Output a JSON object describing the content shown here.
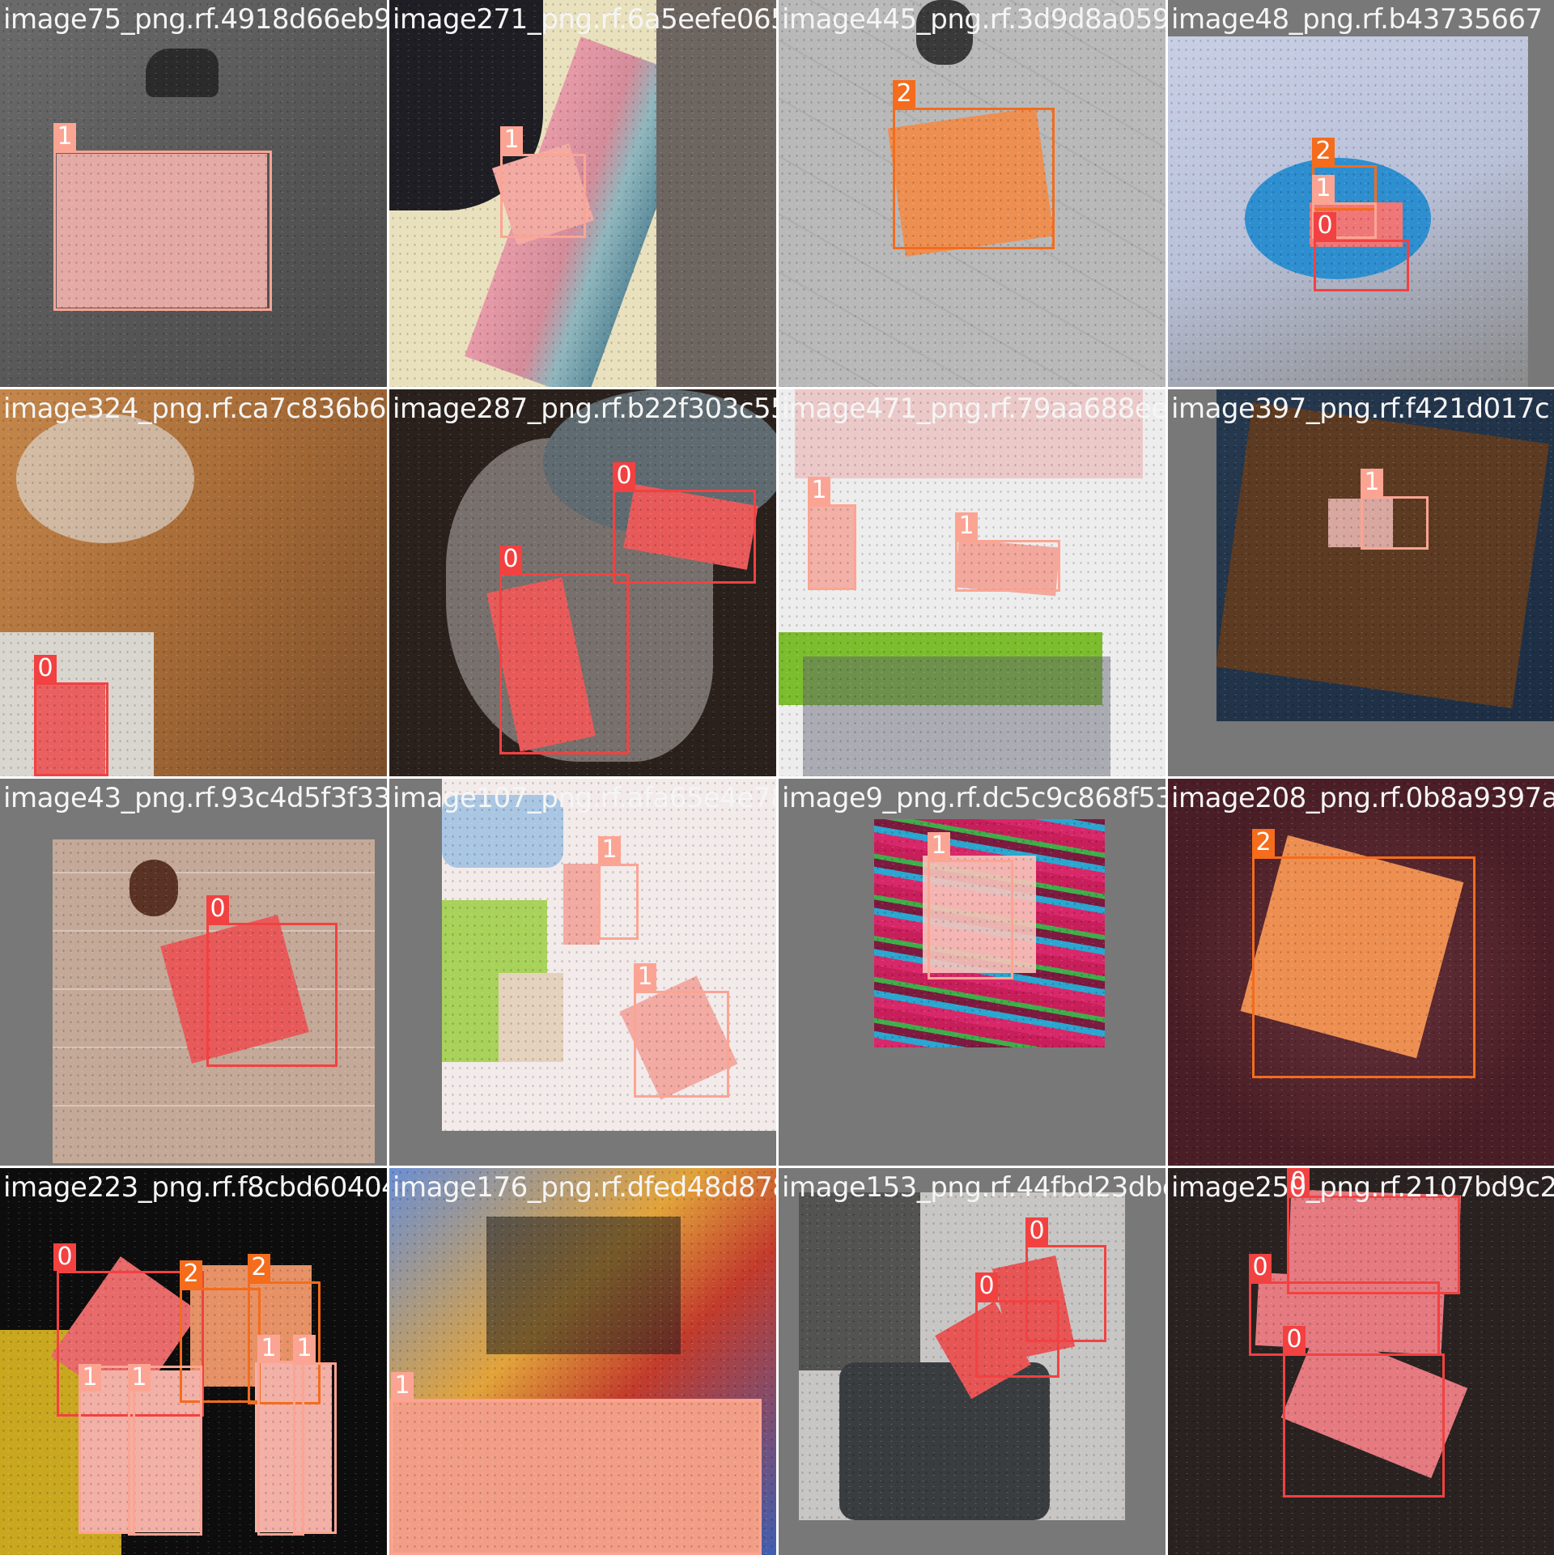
{
  "mosaic": {
    "colors": {
      "class_0": "#f24141",
      "class_1": "#fca493",
      "class_2": "#f46c1c",
      "tile_bg": "#787878"
    },
    "tiles": [
      {
        "filename": "image75_png.rf.4918d66eb97dadd24 1ccaa5...",
        "detections": [
          {
            "label": "1"
          }
        ]
      },
      {
        "filename": "image271_png.rf.6a5eefe0654 1c...",
        "detections": [
          {
            "label": "1"
          }
        ]
      },
      {
        "filename": "image445_png.rf.3d9d8a0593f3b8bf89dd5e43",
        "detections": [
          {
            "label": "2"
          }
        ]
      },
      {
        "filename": "image48_png.rf.b43735667",
        "detections": [
          {
            "label": "2"
          },
          {
            "label": "1"
          },
          {
            "label": "0"
          }
        ]
      },
      {
        "filename": "image324_png.rf.ca7c836b60cab3287395",
        "detections": [
          {
            "label": "0"
          }
        ]
      },
      {
        "filename": "image287_png.rf.b22f303c55b4126 3471",
        "detections": [
          {
            "label": "0"
          },
          {
            "label": "0"
          }
        ]
      },
      {
        "filename": "image471_png.rf.79aa688ee52a1292",
        "detections": [
          {
            "label": "1"
          },
          {
            "label": "1"
          }
        ]
      },
      {
        "filename": "image397_png.rf.f421d017c",
        "detections": [
          {
            "label": "1"
          }
        ]
      },
      {
        "filename": "image43_png.rf.93c4d5f3f33ae5a",
        "detections": [
          {
            "label": "0"
          }
        ]
      },
      {
        "filename": "image107_png.rf.afa65e4e78824ab2f5",
        "detections": [
          {
            "label": "1"
          },
          {
            "label": "1"
          }
        ]
      },
      {
        "filename": "image9_png.rf.dc5c9c868f53269 d",
        "detections": [
          {
            "label": "1"
          }
        ]
      },
      {
        "filename": "image208_png.rf.0b8a9397a2",
        "detections": [
          {
            "label": "2"
          }
        ]
      },
      {
        "filename": "image223_png.rf.f8cbd604048 5a",
        "detections": [
          {
            "label": "0"
          },
          {
            "label": "2"
          },
          {
            "label": "2"
          },
          {
            "label": "1"
          },
          {
            "label": "1"
          },
          {
            "label": "1"
          },
          {
            "label": "1"
          }
        ]
      },
      {
        "filename": "image176_png.rf.dfed48d878e51ab32",
        "detections": [
          {
            "label": "1"
          }
        ]
      },
      {
        "filename": "image153_png.rf.44fbd23dbcfa557",
        "detections": [
          {
            "label": "0"
          },
          {
            "label": "0"
          }
        ]
      },
      {
        "filename": "image250_png.rf.2107bd9c28",
        "detections": [
          {
            "label": "0"
          },
          {
            "label": "0"
          },
          {
            "label": "0"
          }
        ]
      }
    ]
  }
}
